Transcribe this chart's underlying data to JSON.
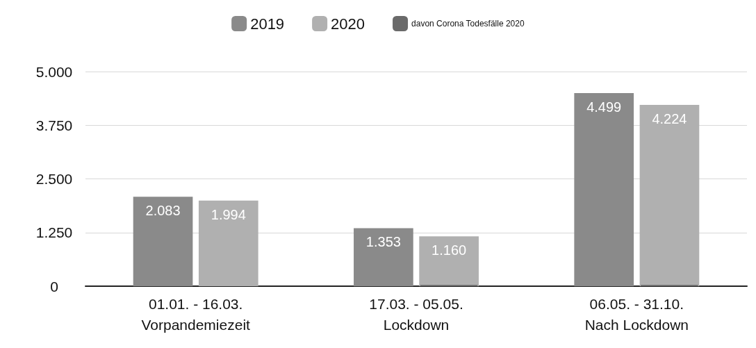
{
  "chart_data": {
    "type": "bar",
    "categories": [
      "01.01. - 16.03.\nVorpandemiezeit",
      "17.03. - 05.05.\nLockdown",
      "06.05. - 31.10.\nNach Lockdown"
    ],
    "series": [
      {
        "name": "2019",
        "color": "#8a8a8a",
        "values": [
          2083,
          1353,
          4499
        ],
        "value_labels": [
          "2.083",
          "1.353",
          "4.499"
        ]
      },
      {
        "name": "2020",
        "color": "#b0b0b0",
        "values": [
          1994,
          1160,
          4224
        ],
        "value_labels": [
          "1.994",
          "1.160",
          "4.224"
        ]
      },
      {
        "name": "davon Corona Todesfälle 2020",
        "color": "#6a6a6a",
        "values": [
          null,
          30,
          30
        ]
      }
    ],
    "ylim": [
      0,
      5000
    ],
    "yticks": [
      {
        "value": 0,
        "label": "0"
      },
      {
        "value": 1250,
        "label": "1.250"
      },
      {
        "value": 2500,
        "label": "2.500"
      },
      {
        "value": 3750,
        "label": "3.750"
      },
      {
        "value": 5000,
        "label": "5.000"
      }
    ],
    "grid": "y",
    "legend": "top"
  }
}
